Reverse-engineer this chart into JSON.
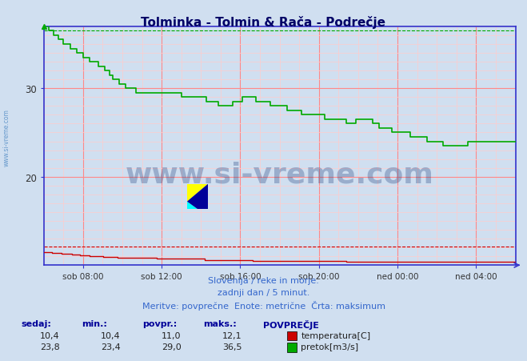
{
  "title": "Tolminka - Tolmin & Rača - Podrečje",
  "bg_color": "#d0dff0",
  "plot_bg_color": "#d0dff0",
  "grid_major_color": "#ff8888",
  "grid_minor_color": "#ffcccc",
  "spine_color": "#3333cc",
  "temp_color": "#cc0000",
  "flow_color": "#00aa00",
  "title_color": "#000066",
  "label_color": "#3366cc",
  "text_color": "#333333",
  "x_labels": [
    "sob 08:00",
    "sob 12:00",
    "sob 16:00",
    "sob 20:00",
    "ned 00:00",
    "ned 04:00"
  ],
  "y_min": 10.0,
  "y_max": 37.0,
  "y_ticks": [
    20,
    30
  ],
  "temp_max": 12.1,
  "temp_min": 10.4,
  "temp_avg": 11.0,
  "temp_current": 10.4,
  "flow_max": 36.5,
  "flow_min": 23.4,
  "flow_avg": 29.0,
  "flow_current": 23.8,
  "subtitle1": "Slovenija / reke in morje.",
  "subtitle2": "zadnji dan / 5 minut.",
  "subtitle3": "Meritve: povprečne  Enote: metrične  Črta: maksimum",
  "col_sedaj": "sedaj:",
  "col_min": "min.:",
  "col_povpr": "povpr.:",
  "col_maks": "maks.:",
  "col_povprecje": "POVPREČJE",
  "lbl_temp": "temperatura[C]",
  "lbl_flow": "pretok[m3/s]",
  "watermark": "www.si-vreme.com"
}
